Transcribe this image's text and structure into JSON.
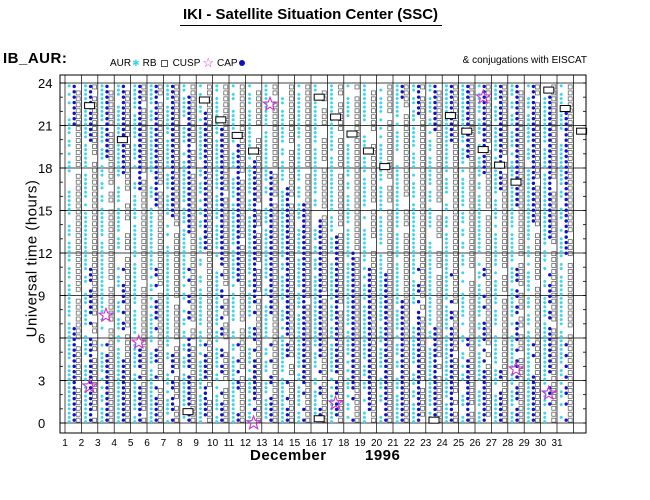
{
  "title": "IKI - Satellite Situation Center (SSC)",
  "dataset": "IB_AUR:",
  "legend": {
    "aur": "AUR",
    "rb": "RB",
    "cusp": "CUSP",
    "cap": "CAP",
    "conjugations": "& conjugations with EISCAT"
  },
  "colors": {
    "aur": "#37d7ef",
    "rb": "#1010c8",
    "cusp": "#555555",
    "cap": "#cc33cc",
    "grid": "#000000"
  },
  "chart_data": {
    "type": "scatter",
    "title": "IKI - Satellite Situation Center (SSC)",
    "xlabel": "December 1996",
    "ylabel": "Universal time (hours)",
    "x_ticks": [
      "1",
      "2",
      "3",
      "4",
      "5",
      "6",
      "7",
      "8",
      "9",
      "10",
      "11",
      "12",
      "13",
      "14",
      "15",
      "16",
      "17",
      "18",
      "19",
      "20",
      "21",
      "22",
      "23",
      "24",
      "25",
      "26",
      "27",
      "28",
      "29",
      "30",
      "31"
    ],
    "y_ticks": [
      "0",
      "3",
      "6",
      "9",
      "12",
      "15",
      "18",
      "21",
      "24"
    ],
    "xlim": [
      1,
      32
    ],
    "ylim": [
      0,
      24
    ],
    "grid": true,
    "month": "December",
    "year": "1996",
    "cap_events": [
      {
        "day": 2,
        "ut": 2.6
      },
      {
        "day": 3,
        "ut": 7.6
      },
      {
        "day": 5,
        "ut": 5.7
      },
      {
        "day": 12,
        "ut": 0.0
      },
      {
        "day": 13,
        "ut": 22.5
      },
      {
        "day": 17,
        "ut": 1.4
      },
      {
        "day": 26,
        "ut": 23.0
      },
      {
        "day": 28,
        "ut": 3.8
      },
      {
        "day": 30,
        "ut": 2.1
      }
    ],
    "conjugations": [
      {
        "day": 2,
        "ut": 22.4
      },
      {
        "day": 4,
        "ut": 20.0
      },
      {
        "day": 8,
        "ut": 0.8
      },
      {
        "day": 9,
        "ut": 22.8
      },
      {
        "day": 10,
        "ut": 21.4
      },
      {
        "day": 11,
        "ut": 20.3
      },
      {
        "day": 12,
        "ut": 19.2
      },
      {
        "day": 16,
        "ut": 0.3
      },
      {
        "day": 16,
        "ut": 23.0
      },
      {
        "day": 17,
        "ut": 21.6
      },
      {
        "day": 18,
        "ut": 20.4
      },
      {
        "day": 19,
        "ut": 19.2
      },
      {
        "day": 20,
        "ut": 18.1
      },
      {
        "day": 23,
        "ut": 0.2
      },
      {
        "day": 24,
        "ut": 21.7
      },
      {
        "day": 25,
        "ut": 20.6
      },
      {
        "day": 26,
        "ut": 19.3
      },
      {
        "day": 27,
        "ut": 18.2
      },
      {
        "day": 28,
        "ut": 17.0
      },
      {
        "day": 30,
        "ut": 23.5
      },
      {
        "day": 31,
        "ut": 22.2
      },
      {
        "day": 32,
        "ut": 20.6
      }
    ]
  }
}
